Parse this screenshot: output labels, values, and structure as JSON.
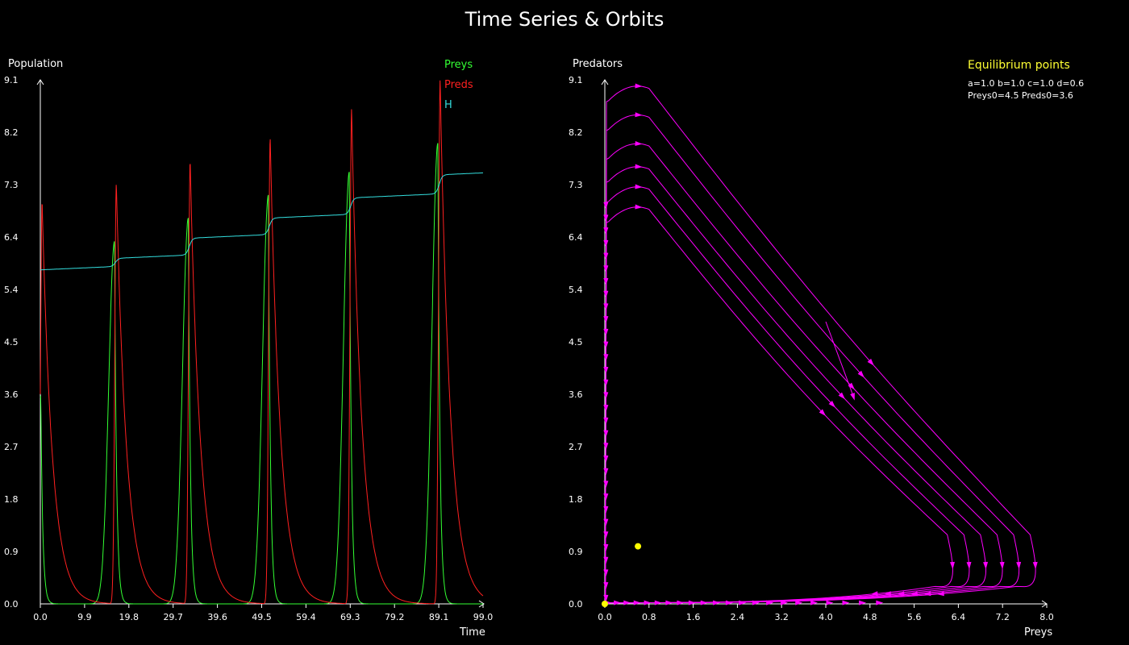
{
  "title": "Time Series & Orbits",
  "colors": {
    "background": "#000000",
    "preys": "#33ff33",
    "preds": "#ff2020",
    "h": "#33dddd",
    "orbit": "#ff00ff",
    "equilibrium": "#ffff00"
  },
  "chart_data": [
    {
      "type": "line",
      "ylabel": "Population",
      "xlabel": "Time",
      "xlim": [
        0,
        99
      ],
      "ylim": [
        0,
        9.1
      ],
      "x_ticks": [
        "0.0",
        "9.9",
        "19.8",
        "29.7",
        "39.6",
        "49.5",
        "59.4",
        "69.3",
        "79.2",
        "89.1",
        "99.0"
      ],
      "y_ticks": [
        "0.0",
        "0.9",
        "1.8",
        "2.7",
        "3.6",
        "4.5",
        "5.4",
        "6.4",
        "7.3",
        "8.2",
        "9.1"
      ],
      "legend_placement": "top-right",
      "series": [
        {
          "name": "Preys",
          "color": "#33ff33",
          "peaks": [
            {
              "t": 0.1,
              "v": 3.6
            },
            {
              "t": 16.6,
              "v": 6.3
            },
            {
              "t": 33.1,
              "v": 6.7
            },
            {
              "t": 51.0,
              "v": 7.1
            },
            {
              "t": 69.1,
              "v": 7.5
            },
            {
              "t": 88.9,
              "v": 8.0
            }
          ]
        },
        {
          "name": "Preds",
          "color": "#ff2020",
          "peaks": [
            {
              "t": 0.4,
              "v": 7.0
            },
            {
              "t": 17.0,
              "v": 7.3
            },
            {
              "t": 33.5,
              "v": 7.7
            },
            {
              "t": 51.4,
              "v": 8.1
            },
            {
              "t": 69.6,
              "v": 8.6
            },
            {
              "t": 89.4,
              "v": 9.1
            }
          ]
        },
        {
          "name": "H",
          "color": "#33dddd",
          "steps": [
            {
              "t": 0,
              "v": 5.8
            },
            {
              "t": 16.8,
              "v": 6.0
            },
            {
              "t": 33.3,
              "v": 6.35
            },
            {
              "t": 51.2,
              "v": 6.7
            },
            {
              "t": 69.4,
              "v": 7.05
            },
            {
              "t": 89.2,
              "v": 7.45
            },
            {
              "t": 99,
              "v": 7.9
            }
          ]
        }
      ]
    },
    {
      "type": "line",
      "xlabel": "Preys",
      "ylabel": "Predators",
      "xlim": [
        0,
        8.0
      ],
      "ylim": [
        0,
        9.1
      ],
      "x_ticks": [
        "0.0",
        "0.8",
        "1.6",
        "2.4",
        "3.2",
        "4.0",
        "4.8",
        "5.6",
        "6.4",
        "7.2",
        "8.0"
      ],
      "y_ticks": [
        "0.0",
        "0.9",
        "1.8",
        "2.7",
        "3.6",
        "4.5",
        "5.4",
        "6.4",
        "7.3",
        "8.2",
        "9.1"
      ],
      "orbits": [
        {
          "max_prey": 6.4,
          "max_pred": 7.0
        },
        {
          "max_prey": 6.7,
          "max_pred": 7.35
        },
        {
          "max_prey": 7.0,
          "max_pred": 7.7
        },
        {
          "max_prey": 7.3,
          "max_pred": 8.1
        },
        {
          "max_prey": 7.6,
          "max_pred": 8.6
        },
        {
          "max_prey": 7.9,
          "max_pred": 9.1
        }
      ],
      "start_point": {
        "prey": 4.5,
        "pred": 3.6
      },
      "equilibrium_points": [
        {
          "prey": 0.0,
          "pred": 0.0
        },
        {
          "prey": 0.6,
          "pred": 1.0
        }
      ]
    }
  ],
  "legend": {
    "preys": "Preys",
    "preds": "Preds",
    "h": "H"
  },
  "info": {
    "title": "Equilibrium points",
    "params": "a=1.0  b=1.0  c=1.0  d=0.6",
    "initial": "Preys0=4.5  Preds0=3.6"
  }
}
